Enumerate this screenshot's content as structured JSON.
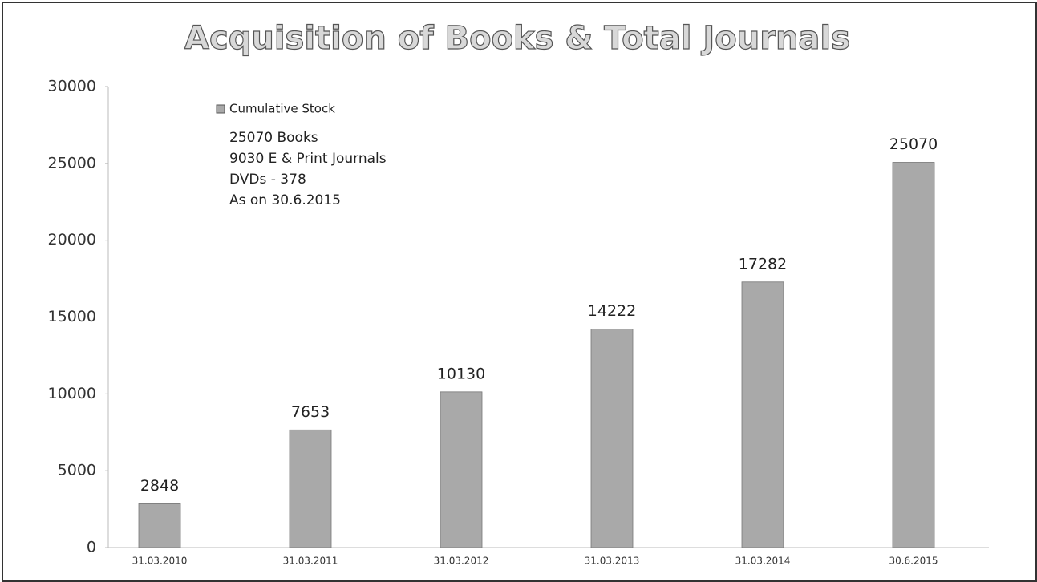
{
  "chart_data": {
    "type": "bar",
    "title": "Acquisition of Books & Total Journals",
    "categories": [
      "31.03.2010",
      "31.03.2011",
      "31.03.2012",
      "31.03.2013",
      "31.03.2014",
      "30.6.2015"
    ],
    "series": [
      {
        "name": "Cumulative Stock",
        "color": "#a9a9a9",
        "values": [
          2848,
          7653,
          10130,
          14222,
          17282,
          25070
        ]
      }
    ],
    "annotations": [
      "25070 Books",
      "9030 E & Print Journals",
      "DVDs - 378",
      "As on 30.6.2015"
    ],
    "ylim": [
      0,
      30000
    ],
    "yticks": [
      0,
      5000,
      10000,
      15000,
      20000,
      25000,
      30000
    ],
    "grid": false,
    "legend": "upper left"
  }
}
